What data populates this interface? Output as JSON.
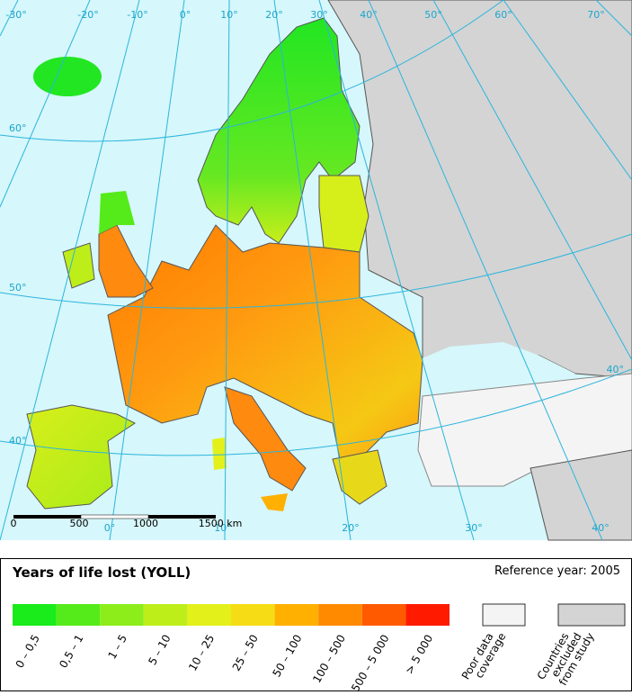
{
  "map": {
    "graticule_top": [
      "-30°",
      "-20°",
      "-10°",
      "0°",
      "10°",
      "20°",
      "30°",
      "40°",
      "50°",
      "60°",
      "70°"
    ],
    "graticule_left": [
      "60°",
      "50°",
      "40°"
    ],
    "graticule_bottom": [
      "0°",
      "10°",
      "20°",
      "30°",
      "40°"
    ],
    "graticule_right": [
      "40°"
    ],
    "scale_bar": [
      "0",
      "500",
      "1000",
      "1500 km"
    ]
  },
  "legend": {
    "title": "Years of life lost (YOLL)",
    "reference": "Reference year: 2005",
    "classes": [
      {
        "label": "0 – 0,5",
        "color": "#1aeb1a"
      },
      {
        "label": "0,5 – 1",
        "color": "#55eb1a"
      },
      {
        "label": "1 – 5",
        "color": "#8ced1a"
      },
      {
        "label": "5 – 10",
        "color": "#bdee1a"
      },
      {
        "label": "10 – 25",
        "color": "#e3f01a"
      },
      {
        "label": "25 – 50",
        "color": "#f5dc14"
      },
      {
        "label": "50 – 100",
        "color": "#ffb000"
      },
      {
        "label": "100 – 500",
        "color": "#ff8a00"
      },
      {
        "label": "500 – 5 000",
        "color": "#ff5a00"
      },
      {
        "label": "> 5 000",
        "color": "#ff1a00"
      }
    ],
    "other": [
      {
        "lines": [
          "Poor data",
          "coverage"
        ],
        "color": "#f4f4f4"
      },
      {
        "lines": [
          "Countries",
          "excluded",
          "from study"
        ],
        "color": "#d4d4d4"
      }
    ]
  }
}
